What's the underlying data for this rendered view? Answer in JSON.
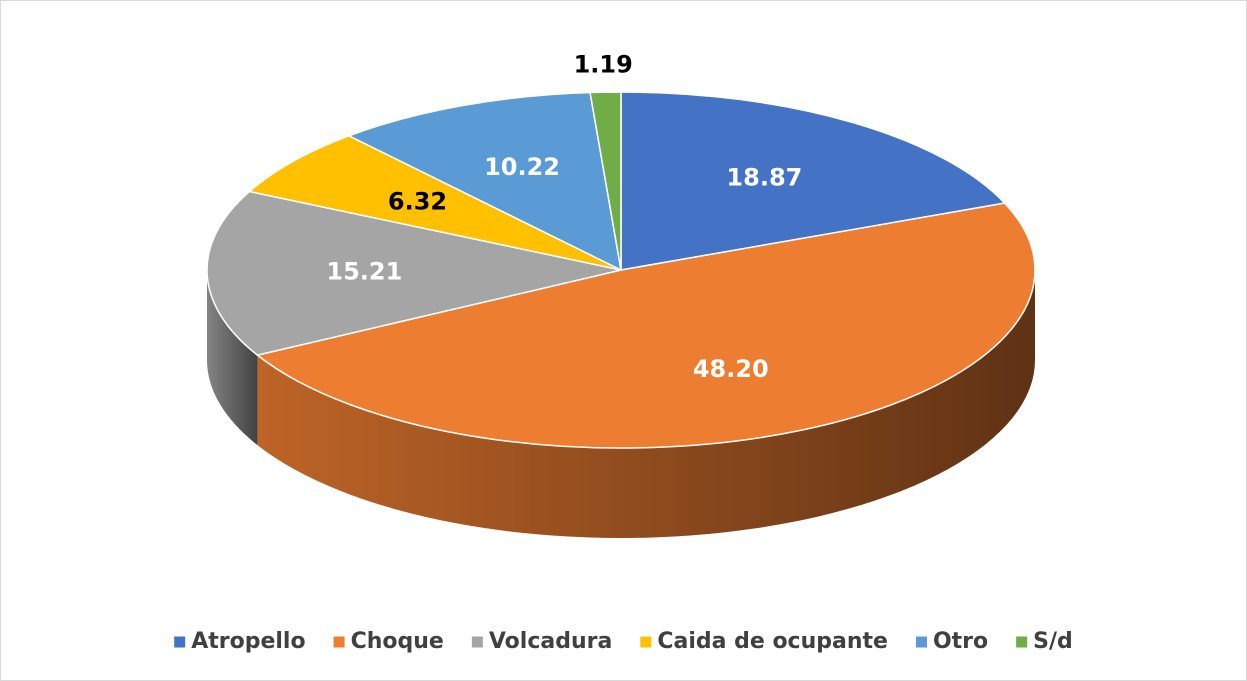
{
  "chart_data": {
    "type": "pie",
    "categories": [
      "Atropello",
      "Choque",
      "Volcadura",
      "Caida de ocupante",
      "Otro",
      "S/d"
    ],
    "values": [
      18.87,
      48.2,
      15.21,
      6.32,
      10.22,
      1.19
    ],
    "value_labels": [
      "18.87",
      "48.20",
      "15.21",
      "6.32",
      "10.22",
      "1.19"
    ],
    "colors": [
      "#4472c4",
      "#ed7d31",
      "#a5a5a5",
      "#ffc000",
      "#5b9bd5",
      "#70ad47"
    ],
    "legend": "bottom"
  }
}
